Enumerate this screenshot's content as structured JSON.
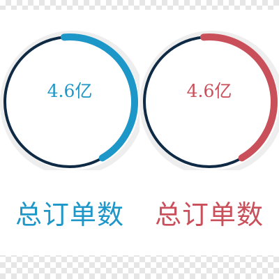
{
  "gauges": [
    {
      "value_text": "4.6亿",
      "label": "总订单数",
      "progress": 0.43,
      "color": "#1d96c8"
    },
    {
      "value_text": "4.6亿",
      "label": "总订单数",
      "progress": 0.43,
      "color": "#c9505a"
    }
  ],
  "colors": {
    "track": "#0f2a44",
    "halo": "#eeeeee"
  }
}
